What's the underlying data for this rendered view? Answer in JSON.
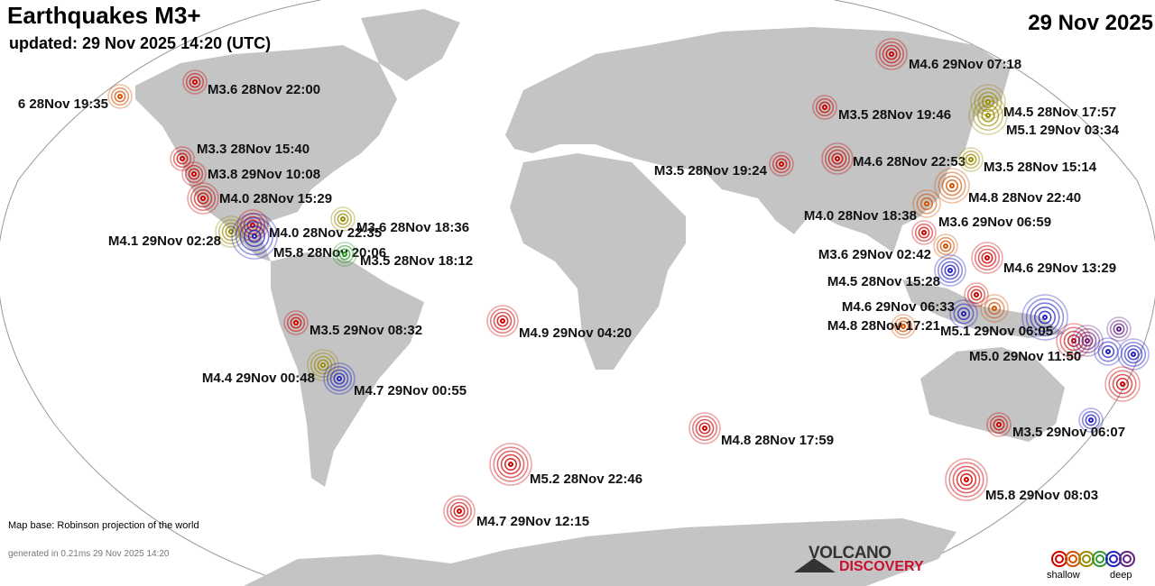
{
  "header": {
    "title": "Earthquakes M3+",
    "updated": "updated: 29 Nov 2025 14:20 (UTC)",
    "date": "29 Nov 2025"
  },
  "depth_colors": {
    "shallow": "#cc0000",
    "shallow_mid": "#d05000",
    "mid": "#9a8a00",
    "mid_deep": "#2a9a2a",
    "deep": "#2020c0",
    "deepest": "#602080"
  },
  "quakes": [
    {
      "label": "6 28Nov 19:35",
      "depth": "shallow_mid"
    },
    {
      "label": "M3.6 28Nov 22:00",
      "depth": "shallow"
    },
    {
      "label": "M4.6 29Nov 07:18",
      "depth": "shallow"
    },
    {
      "label": "M3.5 28Nov 19:46",
      "depth": "shallow"
    },
    {
      "label": "M4.5 28Nov 17:57",
      "depth": "mid"
    },
    {
      "label": "M5.1 29Nov 03:34",
      "depth": "mid"
    },
    {
      "label": "M3.3 28Nov 15:40",
      "depth": "shallow"
    },
    {
      "label": "M3.8 29Nov 10:08",
      "depth": "shallow"
    },
    {
      "label": "M4.0 28Nov 15:29",
      "depth": "shallow"
    },
    {
      "label": "M3.6 28Nov 18:36",
      "depth": "mid"
    },
    {
      "label": "M4.0 28Nov 22:35",
      "depth": "shallow"
    },
    {
      "label": "M4.1 29Nov 02:28",
      "depth": "mid"
    },
    {
      "label": "M5.8 28Nov 20:06",
      "depth": "deep"
    },
    {
      "label": "M3.5 28Nov 18:12",
      "depth": "mid_deep"
    },
    {
      "label": "M3.5 28Nov 19:24",
      "depth": "shallow"
    },
    {
      "label": "M4.6 28Nov 22:53",
      "depth": "shallow"
    },
    {
      "label": "M3.5 28Nov 15:14",
      "depth": "mid"
    },
    {
      "label": "M4.8 28Nov 22:40",
      "depth": "shallow_mid"
    },
    {
      "label": "M4.0 28Nov 18:38",
      "depth": "shallow_mid"
    },
    {
      "label": "M3.6 29Nov 06:59",
      "depth": "shallow"
    },
    {
      "label": "M3.6 29Nov 02:42",
      "depth": "shallow_mid"
    },
    {
      "label": "M4.6 29Nov 13:29",
      "depth": "shallow"
    },
    {
      "label": "M4.5 28Nov 15:28",
      "depth": "deep"
    },
    {
      "label": "M4.6 29Nov 06:33",
      "depth": "shallow"
    },
    {
      "label": "M4.8 28Nov 17:21",
      "depth": "shallow_mid"
    },
    {
      "label": "M5.1 29Nov 06:05",
      "depth": "deep"
    },
    {
      "label": "M5.0 29Nov 11:50",
      "depth": "deep"
    },
    {
      "label": "M3.5 29Nov 08:32",
      "depth": "shallow"
    },
    {
      "label": "M4.9 29Nov 04:20",
      "depth": "shallow"
    },
    {
      "label": "M4.4 29Nov 00:48",
      "depth": "mid"
    },
    {
      "label": "M4.7 29Nov 00:55",
      "depth": "deep"
    },
    {
      "label": "M4.8 28Nov 17:59",
      "depth": "shallow"
    },
    {
      "label": "M3.5 29Nov 06:07",
      "depth": "shallow"
    },
    {
      "label": "M5.2 28Nov 22:46",
      "depth": "shallow"
    },
    {
      "label": "M5.8 29Nov 08:03",
      "depth": "shallow"
    },
    {
      "label": "M4.7 29Nov 12:15",
      "depth": "shallow"
    }
  ],
  "footer": {
    "map_base": "Map base: Robinson projection of the world",
    "generated": "generated in 0.21ms 29 Nov 2025 14:20",
    "logo_top": "VOLCANO",
    "logo_bottom": "DISCOVERY",
    "legend_shallow": "shallow",
    "legend_deep": "deep"
  }
}
